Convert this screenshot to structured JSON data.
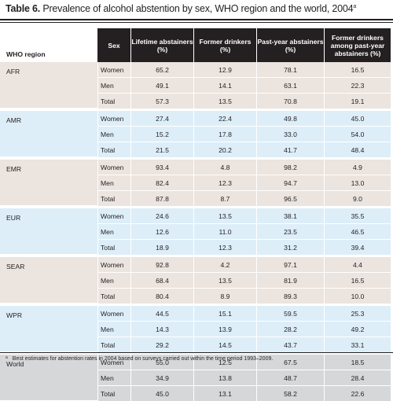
{
  "table": {
    "label": "Table 6.",
    "caption": "Prevalence of alcohol abstention by sex, WHO region and the world, 2004",
    "caption_marker": "a",
    "headers": [
      "WHO region",
      "Sex",
      "Lifetime abstainers (%)",
      "Former drinkers (%)",
      "Past-year abstainers (%)",
      "Former drinkers among past-year abstainers (%)"
    ],
    "groups": [
      {
        "region": "AFR",
        "rows": [
          [
            "Women",
            "65.2",
            "12.9",
            "78.1",
            "16.5"
          ],
          [
            "Men",
            "49.1",
            "14.1",
            "63.1",
            "22.3"
          ],
          [
            "Total",
            "57.3",
            "13.5",
            "70.8",
            "19.1"
          ]
        ]
      },
      {
        "region": "AMR",
        "rows": [
          [
            "Women",
            "27.4",
            "22.4",
            "49.8",
            "45.0"
          ],
          [
            "Men",
            "15.2",
            "17.8",
            "33.0",
            "54.0"
          ],
          [
            "Total",
            "21.5",
            "20.2",
            "41.7",
            "48.4"
          ]
        ]
      },
      {
        "region": "EMR",
        "rows": [
          [
            "Women",
            "93.4",
            "4.8",
            "98.2",
            "4.9"
          ],
          [
            "Men",
            "82.4",
            "12.3",
            "94.7",
            "13.0"
          ],
          [
            "Total",
            "87.8",
            "8.7",
            "96.5",
            "9.0"
          ]
        ]
      },
      {
        "region": "EUR",
        "rows": [
          [
            "Women",
            "24.6",
            "13.5",
            "38.1",
            "35.5"
          ],
          [
            "Men",
            "12.6",
            "11.0",
            "23.5",
            "46.5"
          ],
          [
            "Total",
            "18.9",
            "12.3",
            "31.2",
            "39.4"
          ]
        ]
      },
      {
        "region": "SEAR",
        "rows": [
          [
            "Women",
            "92.8",
            "4.2",
            "97.1",
            "4.4"
          ],
          [
            "Men",
            "68.4",
            "13.5",
            "81.9",
            "16.5"
          ],
          [
            "Total",
            "80.4",
            "8.9",
            "89.3",
            "10.0"
          ]
        ]
      },
      {
        "region": "WPR",
        "rows": [
          [
            "Women",
            "44.5",
            "15.1",
            "59.5",
            "25.3"
          ],
          [
            "Men",
            "14.3",
            "13.9",
            "28.2",
            "49.2"
          ],
          [
            "Total",
            "29.2",
            "14.5",
            "43.7",
            "33.1"
          ]
        ]
      },
      {
        "region": "World",
        "rows": [
          [
            "Women",
            "55.0",
            "12.5",
            "67.5",
            "18.5"
          ],
          [
            "Men",
            "34.9",
            "13.8",
            "48.7",
            "28.4"
          ],
          [
            "Total",
            "45.0",
            "13.1",
            "58.2",
            "22.6"
          ]
        ]
      }
    ],
    "footnote_marker": "a",
    "footnote": "Best estimates for abstention rates in 2004 based on surveys carried out within the time period 1993–2009."
  },
  "colors": {
    "header_bg": "#242021",
    "warm_band": "#ebe4df",
    "blue_band": "#ddeef8",
    "world_band": "#d6d7d9"
  }
}
